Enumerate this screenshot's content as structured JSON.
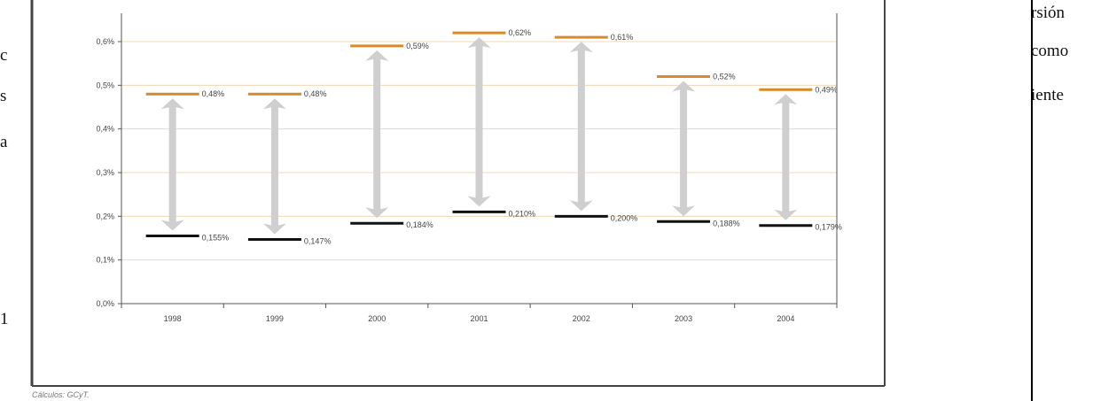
{
  "left_margin_fragments": [
    "c",
    "s",
    "a",
    "1"
  ],
  "right_margin_fragments": [
    "rsión",
    "como",
    "iente"
  ],
  "source_note": "Cálculos: GCyT.",
  "chart_data": {
    "type": "range",
    "categories": [
      "1998",
      "1999",
      "2000",
      "2001",
      "2002",
      "2003",
      "2004"
    ],
    "series": [
      {
        "values": [
          0.48,
          0.48,
          0.59,
          0.62,
          0.61,
          0.52,
          0.49
        ],
        "labels": [
          "0,48%",
          "0,48%",
          "0,59%",
          "0,62%",
          "0,61%",
          "0,52%",
          "0,49%"
        ]
      },
      {
        "values": [
          0.155,
          0.147,
          0.184,
          0.21,
          0.2,
          0.188,
          0.179
        ],
        "labels": [
          "0,155%",
          "0,147%",
          "0,184%",
          "0,210%",
          "0,200%",
          "0,188%",
          "0,179%"
        ]
      }
    ],
    "y_ticks": [
      "0,0%",
      "0,1%",
      "0,2%",
      "0,3%",
      "0,4%",
      "0,5%",
      "0,6%"
    ],
    "ylim": [
      0,
      0.6
    ],
    "grid": true,
    "colors": {
      "upper": "#d8892b",
      "lower": "#111111",
      "arrow": "#cfcfcf",
      "grid": "#f0d9b5",
      "axis": "#555555"
    }
  }
}
